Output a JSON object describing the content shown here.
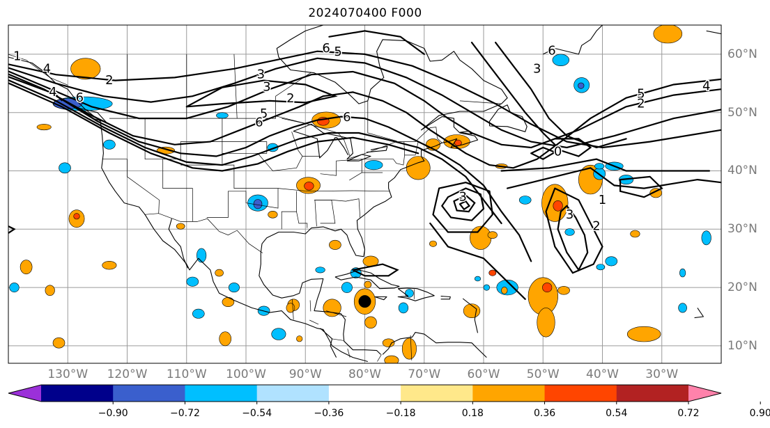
{
  "title": "2024070400 F000",
  "map": {
    "projection": "PlateCarree",
    "lon_range": [
      -140,
      -20
    ],
    "lat_range": [
      7,
      65
    ],
    "gridlines": true,
    "features": [
      "coastlines",
      "country borders",
      "US state borders"
    ],
    "storm_marker": {
      "lon": -80,
      "lat": 17.6,
      "color": "#000000"
    }
  },
  "lon_labels": [
    "130°W",
    "120°W",
    "110°W",
    "100°W",
    "90°W",
    "80°W",
    "70°W",
    "60°W",
    "50°W",
    "40°W",
    "30°W"
  ],
  "lat_labels": [
    "60°N",
    "50°N",
    "40°N",
    "30°N",
    "20°N",
    "10°N"
  ],
  "contour_labels": [
    {
      "text": "1",
      "lon": -138.5,
      "lat": 59.6
    },
    {
      "text": "4",
      "lon": -133.5,
      "lat": 57.5
    },
    {
      "text": "2",
      "lon": -123,
      "lat": 55.5
    },
    {
      "text": "4",
      "lon": -132.5,
      "lat": 53.5
    },
    {
      "text": "6",
      "lon": -128,
      "lat": 52.5
    },
    {
      "text": "3",
      "lon": -97.5,
      "lat": 56.5
    },
    {
      "text": "3",
      "lon": -96.5,
      "lat": 54.4
    },
    {
      "text": "2",
      "lon": -92.5,
      "lat": 52.4
    },
    {
      "text": "6",
      "lon": -86.5,
      "lat": 61
    },
    {
      "text": "5",
      "lon": -84.5,
      "lat": 60.4
    },
    {
      "text": "5",
      "lon": -97,
      "lat": 49.8
    },
    {
      "text": "6",
      "lon": -97.8,
      "lat": 48.3
    },
    {
      "text": "6",
      "lon": -83,
      "lat": 49.2
    },
    {
      "text": "3",
      "lon": -51,
      "lat": 57.5
    },
    {
      "text": "6",
      "lon": -48.5,
      "lat": 60.6
    },
    {
      "text": "5",
      "lon": -33.5,
      "lat": 53.2
    },
    {
      "text": "2",
      "lon": -33.5,
      "lat": 51.5
    },
    {
      "text": "4",
      "lon": -22.5,
      "lat": 54.5
    },
    {
      "text": "0",
      "lon": -47.5,
      "lat": 43.3
    },
    {
      "text": "3",
      "lon": -63.5,
      "lat": 35.5
    },
    {
      "text": "3",
      "lon": -45.5,
      "lat": 32.5
    },
    {
      "text": "2",
      "lon": -41,
      "lat": 30.5
    },
    {
      "text": "1",
      "lon": -40,
      "lat": 35
    }
  ],
  "colorbar": {
    "ticks": [
      "−0.90",
      "−0.72",
      "−0.54",
      "−0.36",
      "−0.18",
      "0.18",
      "0.36",
      "0.54",
      "0.72",
      "0.90"
    ],
    "colors": [
      "#9b30d9",
      "#00008b",
      "#3a5fcd",
      "#00bfff",
      "#b0e2ff",
      "#ffffff",
      "#ffe88a",
      "#ffa500",
      "#ff4500",
      "#b22222",
      "#ff82ab"
    ],
    "extend": "both"
  },
  "shaded_colors": {
    "pos_light": "#ffa500",
    "pos_strong": "#ff4500",
    "neg_light": "#00bfff",
    "neg_strong": "#3a5fcd"
  }
}
